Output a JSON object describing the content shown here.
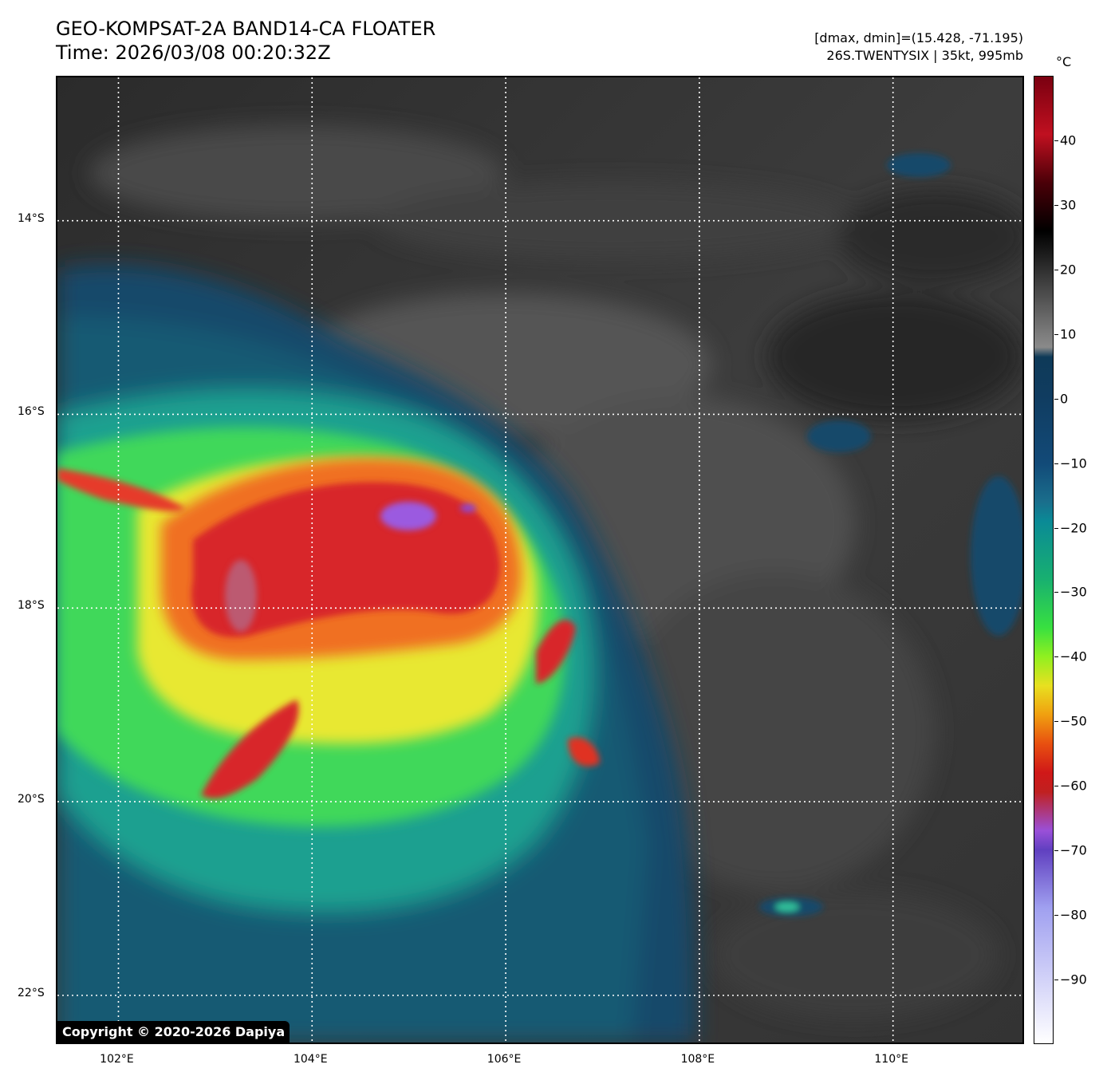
{
  "title": {
    "line1": "GEO-KOMPSAT-2A BAND14-CA FLOATER",
    "line2": "Time: 2026/03/08 00:20:32Z"
  },
  "info": {
    "line1": "[dmax, dmin]=(15.428, -71.195)",
    "line2": "26S.TWENTYSIX | 35kt, 995mb"
  },
  "colorbar": {
    "unit": "°C",
    "range": [
      -100,
      50
    ],
    "ticks": [
      "40",
      "30",
      "20",
      "10",
      "0",
      "−10",
      "−20",
      "−30",
      "−40",
      "−50",
      "−60",
      "−70",
      "−80",
      "−90"
    ],
    "tick_values": [
      40,
      30,
      20,
      10,
      0,
      -10,
      -20,
      -30,
      -40,
      -50,
      -60,
      -70,
      -80,
      -90
    ]
  },
  "map": {
    "lat_labels": [
      "14°S",
      "16°S",
      "18°S",
      "20°S",
      "22°S"
    ],
    "lat_values": [
      -14,
      -16,
      -18,
      -20,
      -22
    ],
    "lon_labels": [
      "102°E",
      "104°E",
      "106°E",
      "108°E",
      "110°E"
    ],
    "lon_values": [
      102,
      104,
      106,
      108,
      110
    ],
    "lon_range": [
      101.37,
      111.37
    ],
    "lat_range": [
      -12.52,
      -22.52
    ]
  },
  "copyright": "Copyright © 2020-2026 Dapiya"
}
